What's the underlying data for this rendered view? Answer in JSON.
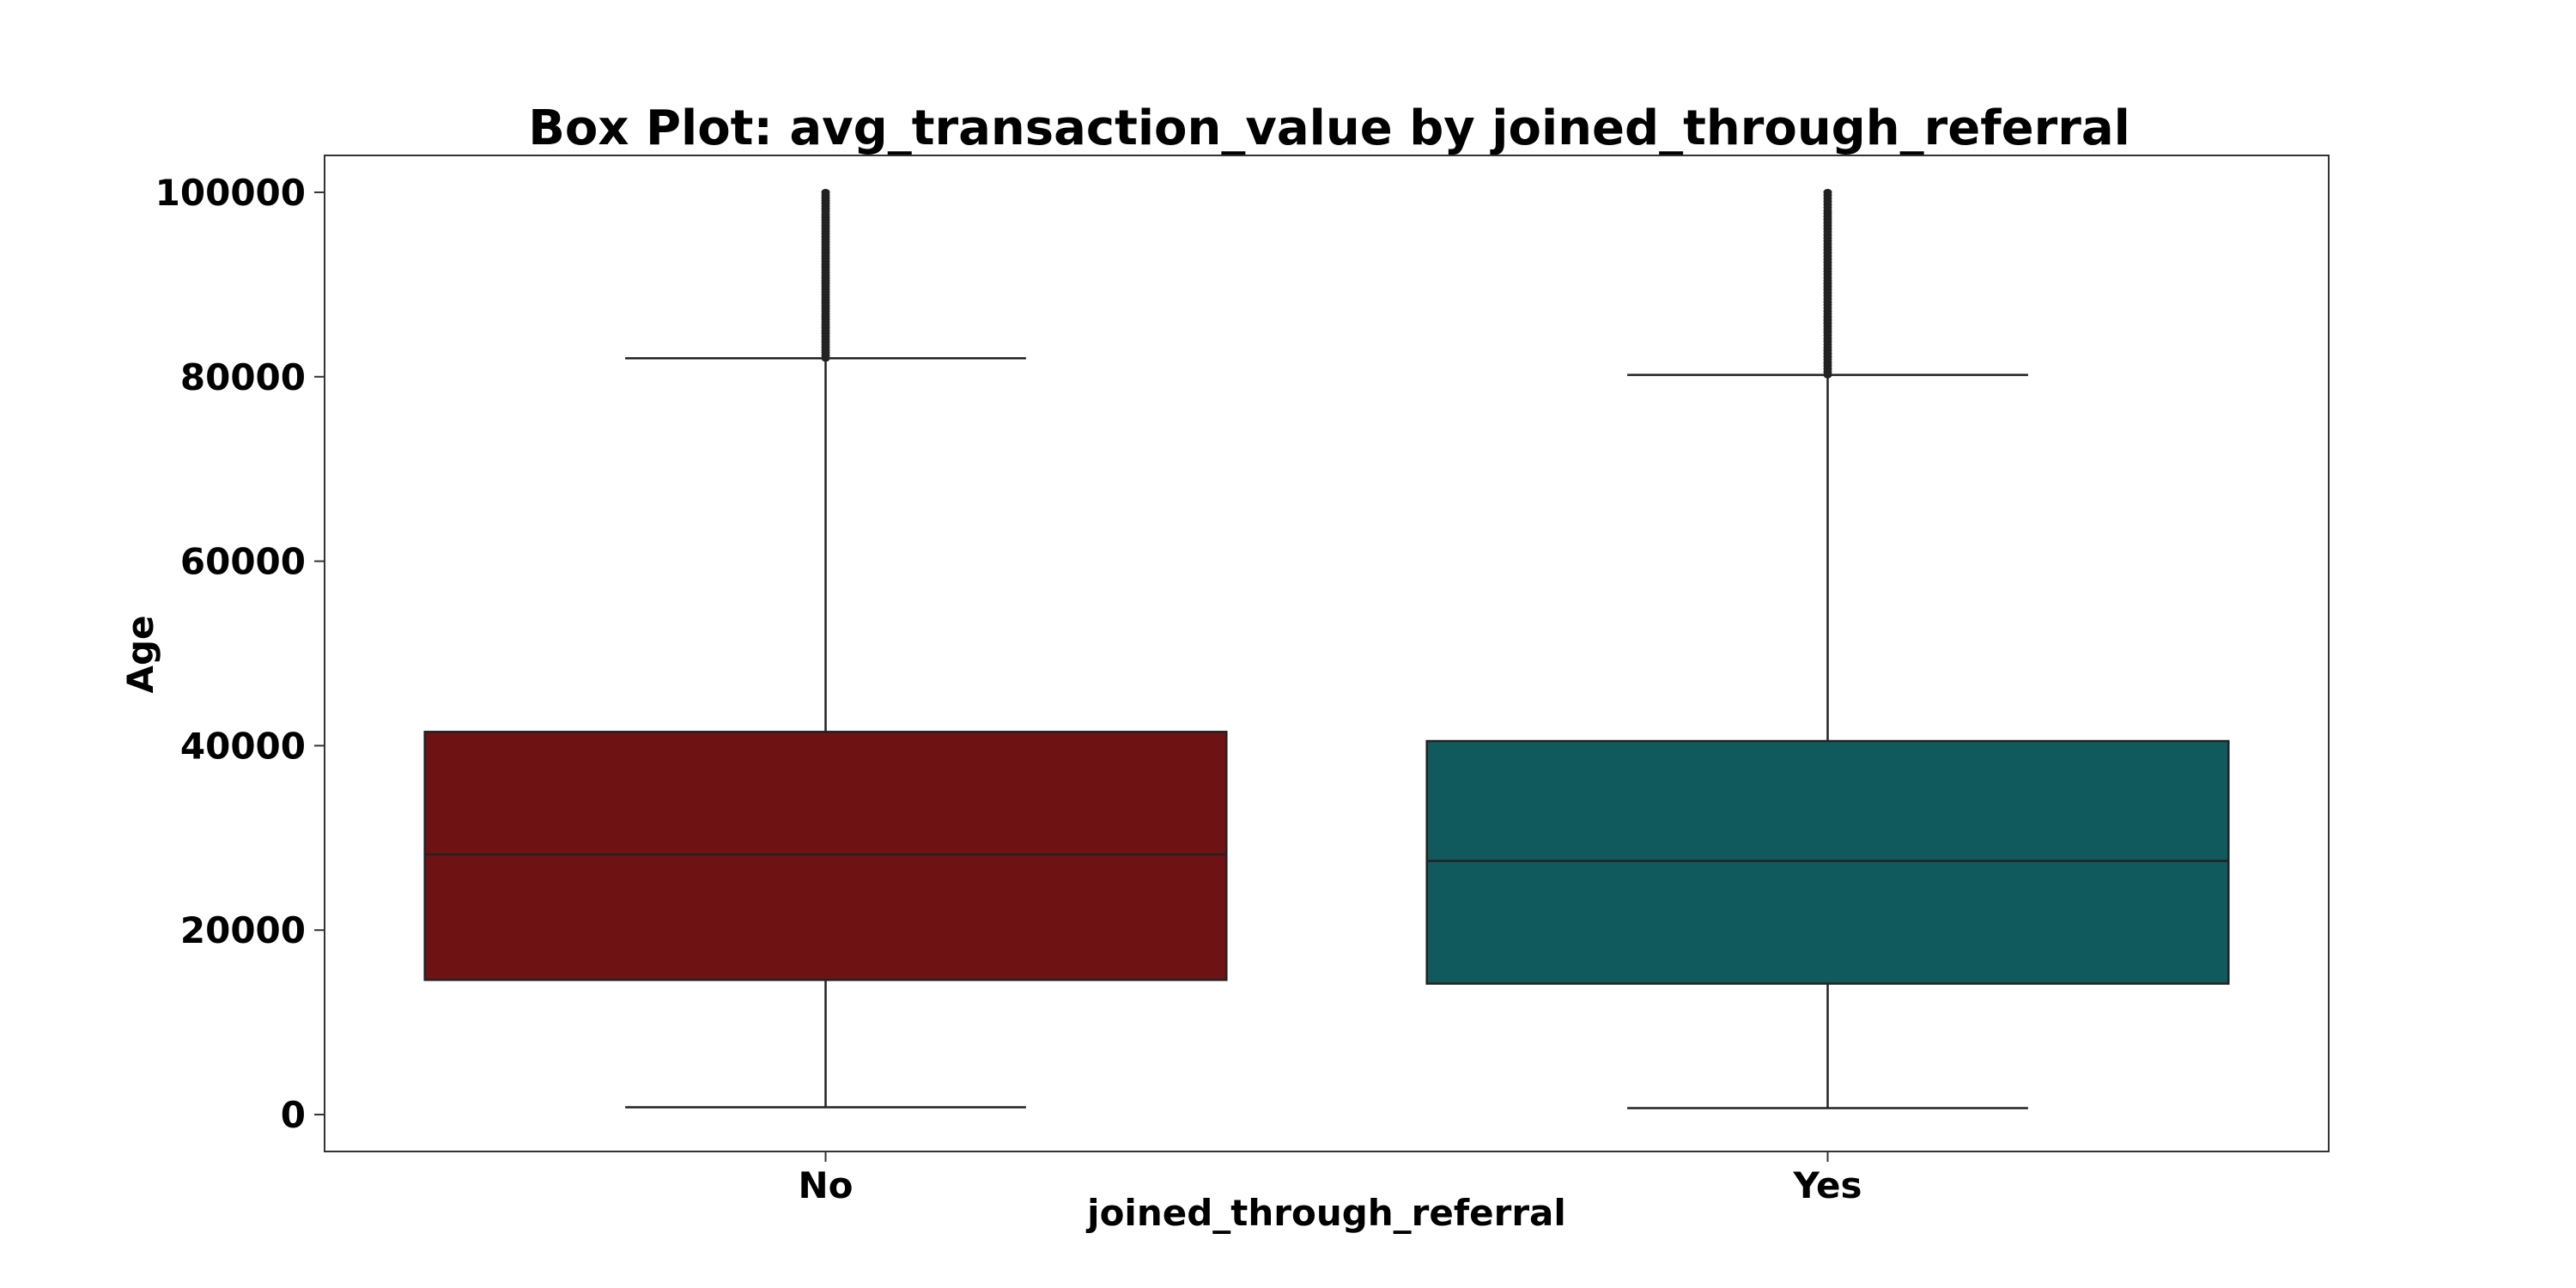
{
  "chart_data": {
    "type": "box",
    "title": "Box Plot: avg_transaction_value by joined_through_referral",
    "xlabel": "joined_through_referral",
    "ylabel": "Age",
    "categories": [
      "No",
      "Yes"
    ],
    "ylim": [
      -4000,
      104000
    ],
    "yticks": [
      0,
      20000,
      40000,
      60000,
      80000,
      100000
    ],
    "ytick_labels": [
      "0",
      "20000",
      "40000",
      "60000",
      "80000",
      "100000"
    ],
    "grid": false,
    "boxes": [
      {
        "category": "No",
        "color": "#6e1214",
        "whisker_low": 800,
        "q1": 14600,
        "median": 28200,
        "q3": 41500,
        "whisker_high": 82000,
        "outliers_from": 82000,
        "outliers_to": 100000
      },
      {
        "category": "Yes",
        "color": "#10595c",
        "whisker_low": 700,
        "q1": 14200,
        "median": 27500,
        "q3": 40500,
        "whisker_high": 80200,
        "outliers_from": 80200,
        "outliers_to": 100000
      }
    ]
  }
}
